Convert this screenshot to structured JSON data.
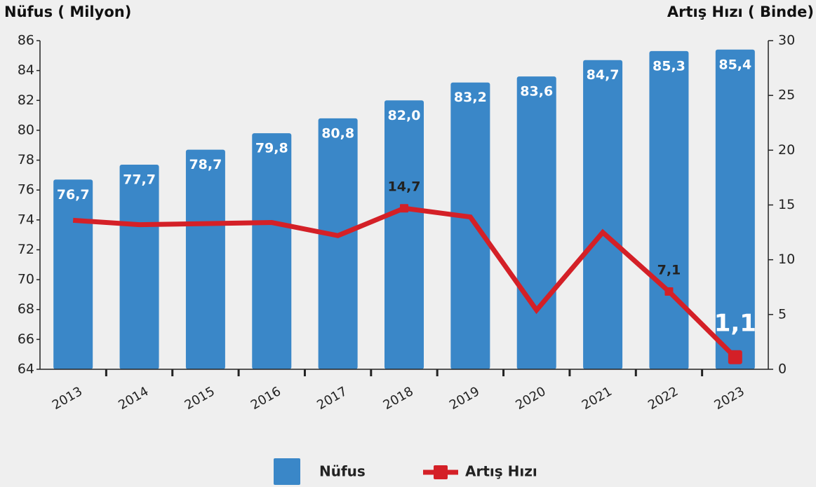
{
  "chart_data": {
    "type": "bar",
    "y_label": "Nüfus ( Milyon)",
    "y2_label": "Artış Hızı ( Binde)",
    "categories": [
      "2013",
      "2014",
      "2015",
      "2016",
      "2017",
      "2018",
      "2019",
      "2020",
      "2021",
      "2022",
      "2023"
    ],
    "series": [
      {
        "name": "Nüfus",
        "type": "bar",
        "color": "#3a87c8",
        "values": [
          76.7,
          77.7,
          78.7,
          79.8,
          80.8,
          82.0,
          83.2,
          83.6,
          84.7,
          85.3,
          85.4
        ],
        "value_labels": [
          "76,7",
          "77,7",
          "78,7",
          "79,8",
          "80,8",
          "82,0",
          "83,2",
          "83,6",
          "84,7",
          "85,3",
          "85,4"
        ]
      },
      {
        "name": "Artış Hızı",
        "type": "line",
        "axis": "y2",
        "color": "#d42027",
        "values": [
          13.6,
          13.2,
          13.3,
          13.4,
          12.2,
          14.7,
          13.9,
          5.4,
          12.5,
          7.1,
          1.1
        ],
        "value_labels": [
          null,
          null,
          null,
          null,
          null,
          "14,7",
          null,
          null,
          null,
          "7,1",
          "1,1"
        ]
      }
    ],
    "ylim": [
      64,
      86
    ],
    "yticks": [
      64,
      66,
      68,
      70,
      72,
      74,
      76,
      78,
      80,
      82,
      84,
      86
    ],
    "y2lim": [
      0,
      30
    ],
    "y2ticks": [
      0,
      5,
      10,
      15,
      20,
      25,
      30
    ]
  }
}
